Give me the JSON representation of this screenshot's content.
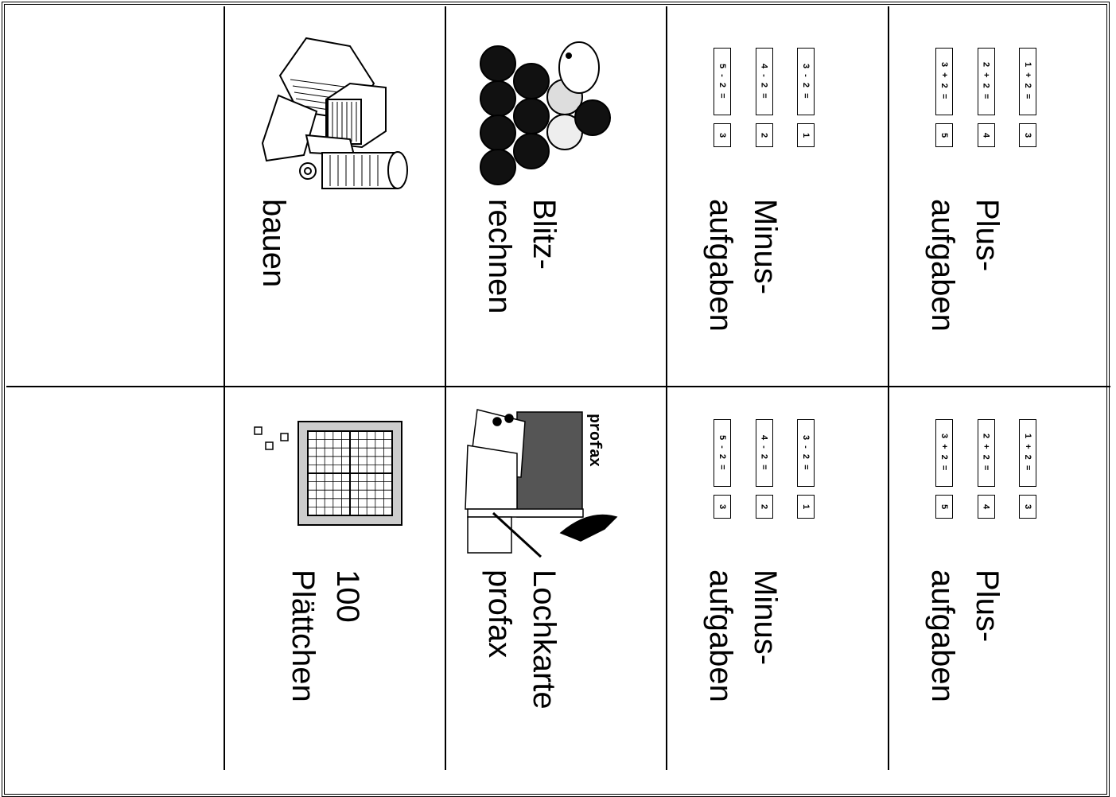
{
  "table": {
    "rows": [
      {
        "cards": [
          {
            "label": [
              "bauen"
            ]
          },
          {
            "label": [
              "Blitz-",
              "rechnen"
            ]
          },
          {
            "label": [
              "Minus-",
              "aufgaben"
            ],
            "equations": [
              {
                "task": "3 - 2 =",
                "answer": "1"
              },
              {
                "task": "4 - 2 =",
                "answer": "2"
              },
              {
                "task": "5 - 2 =",
                "answer": "3"
              }
            ]
          },
          {
            "label": [
              "Plus-",
              "aufgaben"
            ],
            "equations": [
              {
                "task": "1 + 2 =",
                "answer": "3"
              },
              {
                "task": "2 + 2 =",
                "answer": "4"
              },
              {
                "task": "3 + 2 =",
                "answer": "5"
              }
            ]
          }
        ]
      },
      {
        "cards": [
          {
            "label": [
              "100",
              "Plättchen"
            ]
          },
          {
            "label": [
              "Lochkarte",
              "profax"
            ],
            "image_text": "profax"
          },
          {
            "label": [
              "Minus-",
              "aufgaben"
            ],
            "equations": [
              {
                "task": "3 - 2 =",
                "answer": "1"
              },
              {
                "task": "4 - 2 =",
                "answer": "2"
              },
              {
                "task": "5 - 2 =",
                "answer": "3"
              }
            ]
          },
          {
            "label": [
              "Plus-",
              "aufgaben"
            ],
            "equations": [
              {
                "task": "1 + 2 =",
                "answer": "3"
              },
              {
                "task": "2 + 2 =",
                "answer": "4"
              },
              {
                "task": "3 + 2 =",
                "answer": "5"
              }
            ]
          }
        ]
      }
    ]
  }
}
